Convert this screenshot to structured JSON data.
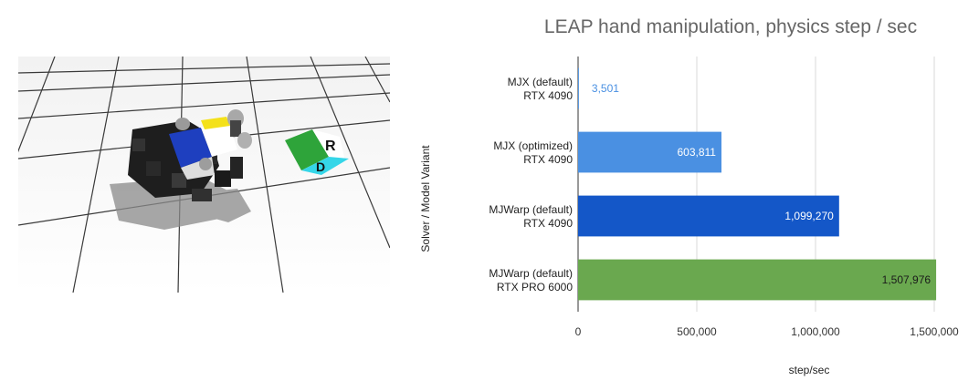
{
  "simulation": {
    "cube_face_labels": [
      "R",
      "D"
    ]
  },
  "chart_data": {
    "type": "bar",
    "orientation": "horizontal",
    "title": "LEAP hand manipulation, physics step / sec",
    "xlabel": "step/sec",
    "ylabel": "Solver / Model Variant",
    "categories": [
      [
        "MJX (default)",
        "RTX 4090"
      ],
      [
        "MJX (optimized)",
        "RTX 4090"
      ],
      [
        "MJWarp (default)",
        "RTX 4090"
      ],
      [
        "MJWarp (default)",
        "RTX PRO 6000"
      ]
    ],
    "values": [
      3501,
      603811,
      1099270,
      1507976
    ],
    "value_labels": [
      "3,501",
      "603,811",
      "1,099,270",
      "1,507,976"
    ],
    "bar_colors": [
      "#4a90e2",
      "#4a90e2",
      "#1457c8",
      "#6aa84f"
    ],
    "value_label_colors": [
      "#4a90e2",
      "#ffffff",
      "#ffffff",
      "#1a1a1a"
    ],
    "xlim": [
      0,
      1650000
    ],
    "xticks": [
      0,
      500000,
      1000000,
      1500000
    ],
    "xtick_labels": [
      "0",
      "500,000",
      "1,000,000",
      "1,500,000"
    ],
    "grid": true,
    "legend": "none"
  }
}
